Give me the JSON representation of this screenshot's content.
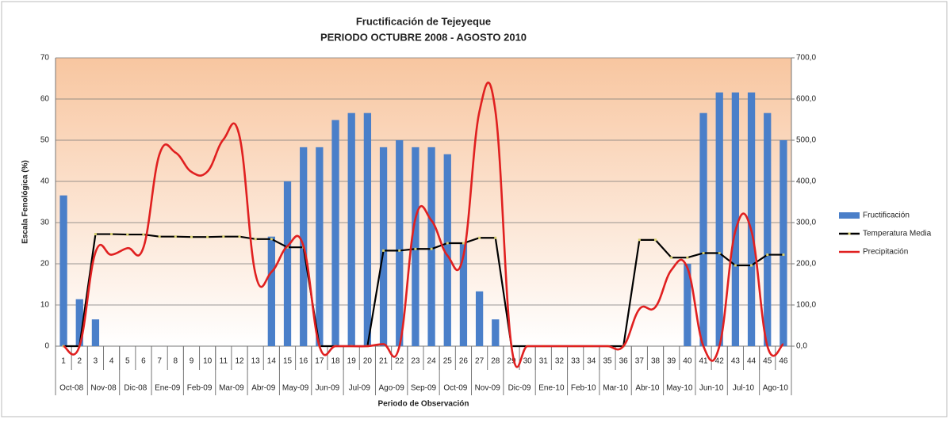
{
  "chart_data": {
    "type": "bar-line",
    "title": "Fructificación de Tejeyeque",
    "subtitle": "PERIODO OCTUBRE 2008  -  AGOSTO 2010",
    "x_label": "Periodo de Observación",
    "y_label": "Escala Fenológica (%)",
    "categories": [
      "1",
      "2",
      "3",
      "4",
      "5",
      "6",
      "7",
      "8",
      "9",
      "10",
      "11",
      "12",
      "13",
      "14",
      "15",
      "16",
      "17",
      "18",
      "19",
      "20",
      "21",
      "22",
      "23",
      "24",
      "25",
      "26",
      "27",
      "28",
      "29",
      "30",
      "31",
      "32",
      "33",
      "34",
      "35",
      "36",
      "37",
      "38",
      "39",
      "40",
      "41",
      "42",
      "43",
      "44",
      "45",
      "46"
    ],
    "groups": [
      "Oct-08",
      "Nov-08",
      "Dic-08",
      "Ene-09",
      "Feb-09",
      "Mar-09",
      "Abr-09",
      "May-09",
      "Jun-09",
      "Jul-09",
      "Ago-09",
      "Sep-09",
      "Oct-09",
      "Nov-09",
      "Dic-09",
      "Ene-10",
      "Feb-10",
      "Mar-10",
      "Abr-10",
      "May-10",
      "Jun-10",
      "Jul-10",
      "Ago-10"
    ],
    "ylim": [
      0,
      70
    ],
    "yticks": [
      0,
      10,
      20,
      30,
      40,
      50,
      60,
      70
    ],
    "y2lim": [
      0,
      700
    ],
    "y2ticks": [
      {
        "value": 0,
        "label": "0,0"
      },
      {
        "value": 100,
        "label": "100,0"
      },
      {
        "value": 200,
        "label": "200,0"
      },
      {
        "value": 300,
        "label": "300,0"
      },
      {
        "value": 400,
        "label": "400,0"
      },
      {
        "value": 500,
        "label": "500,0"
      },
      {
        "value": 600,
        "label": "600,0"
      },
      {
        "value": 700,
        "label": "700,0"
      }
    ],
    "grid": true,
    "legend": "right",
    "series": [
      {
        "name": "Fructificación",
        "type": "bar",
        "color": "#4a7fc9",
        "values": [
          36.6,
          11.4,
          6.5,
          0,
          0,
          0,
          0,
          0,
          0,
          0,
          0,
          0,
          0,
          26.6,
          40,
          48.3,
          48.3,
          54.9,
          56.6,
          56.6,
          48.3,
          50,
          48.3,
          48.3,
          46.6,
          25,
          13.3,
          6.5,
          0,
          0,
          0,
          0,
          0,
          0,
          0,
          0,
          0,
          0,
          0,
          20,
          56.6,
          61.6,
          61.6,
          61.6,
          56.6,
          50
        ]
      },
      {
        "name": "Temperatura Media",
        "type": "line",
        "axis": "y2",
        "color": "#000000",
        "marker_color": "#d8d070",
        "values": [
          0,
          0,
          272,
          272,
          271,
          271,
          266,
          266,
          265,
          265,
          266,
          266,
          260,
          260,
          240,
          240,
          0,
          0,
          0,
          0,
          232,
          232,
          236,
          236,
          250,
          250,
          263,
          263,
          0,
          0,
          0,
          0,
          0,
          0,
          0,
          0,
          258,
          258,
          215,
          215,
          226,
          226,
          196,
          196,
          222,
          222
        ]
      },
      {
        "name": "Precipitación",
        "type": "line",
        "axis": "y2",
        "color": "#e02020",
        "values": [
          0,
          0,
          228,
          222,
          238,
          240,
          466,
          470,
          423,
          424,
          502,
          510,
          175,
          180,
          243,
          243,
          0,
          0,
          0,
          0,
          5,
          0,
          310,
          305,
          220,
          220,
          570,
          570,
          0,
          0,
          0,
          0,
          0,
          0,
          0,
          0,
          90,
          95,
          185,
          190,
          0,
          0,
          280,
          280,
          0,
          5
        ]
      }
    ]
  }
}
